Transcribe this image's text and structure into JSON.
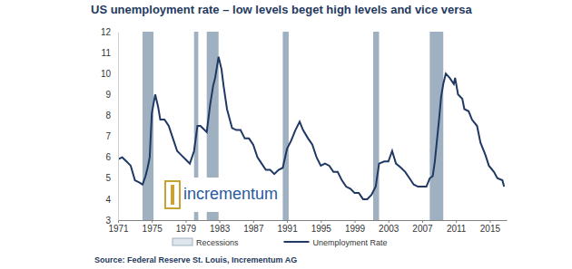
{
  "chart_data": {
    "type": "line",
    "title": "US unemployment rate – low levels beget high levels and vice versa",
    "source": "Source: Federal Reserve St. Louis, Incrementum AG",
    "annotations": [
      "incrementum"
    ],
    "x": [
      1971.0,
      1971.5,
      1972.0,
      1972.5,
      1973.0,
      1973.5,
      1973.9,
      1974.25,
      1974.5,
      1974.75,
      1975.0,
      1975.4,
      1975.75,
      1976.0,
      1976.5,
      1977.0,
      1977.5,
      1978.0,
      1978.5,
      1979.0,
      1979.5,
      1980.0,
      1980.4,
      1980.75,
      1981.0,
      1981.5,
      1981.9,
      1982.25,
      1982.5,
      1982.9,
      1983.25,
      1983.5,
      1983.9,
      1984.5,
      1985.0,
      1985.5,
      1986.0,
      1986.5,
      1987.0,
      1987.5,
      1988.0,
      1988.5,
      1989.0,
      1989.5,
      1990.0,
      1990.5,
      1991.0,
      1991.5,
      1992.0,
      1992.5,
      1992.9,
      1993.5,
      1994.0,
      1994.5,
      1995.0,
      1995.5,
      1996.0,
      1996.5,
      1997.0,
      1997.5,
      1998.0,
      1998.5,
      1999.0,
      1999.5,
      2000.0,
      2000.5,
      2001.0,
      2001.5,
      2001.9,
      2002.5,
      2003.0,
      2003.45,
      2003.9,
      2004.5,
      2005.0,
      2005.5,
      2006.0,
      2006.5,
      2007.0,
      2007.5,
      2007.9,
      2008.25,
      2008.5,
      2008.75,
      2009.0,
      2009.25,
      2009.5,
      2009.8,
      2010.25,
      2010.75,
      2010.9,
      2011.25,
      2011.75,
      2012.0,
      2012.5,
      2012.9,
      2013.5,
      2013.9,
      2014.5,
      2014.9,
      2015.5,
      2015.9,
      2016.5,
      2016.7
    ],
    "series": [
      {
        "name": "Recessions",
        "type": "band",
        "color": "#9fb0c0",
        "starts": [
          1973.9,
          1980.0,
          1981.5,
          1990.5,
          2001.2,
          2007.9
        ],
        "ends": [
          1975.2,
          1980.5,
          1982.9,
          1991.2,
          2001.9,
          2009.5
        ]
      },
      {
        "name": "Unemployment Rate",
        "type": "line",
        "color": "#1f3864",
        "values": [
          5.9,
          6.0,
          5.8,
          5.6,
          4.9,
          4.8,
          4.7,
          5.1,
          5.5,
          6.0,
          8.1,
          9.0,
          8.4,
          7.8,
          7.8,
          7.5,
          6.9,
          6.3,
          6.1,
          5.9,
          5.7,
          6.3,
          7.5,
          7.5,
          7.4,
          7.2,
          8.5,
          9.4,
          9.8,
          10.8,
          10.2,
          9.4,
          8.3,
          7.4,
          7.3,
          7.3,
          6.9,
          6.9,
          6.6,
          6.0,
          5.7,
          5.4,
          5.4,
          5.2,
          5.4,
          5.5,
          6.4,
          6.8,
          7.3,
          7.7,
          7.3,
          6.9,
          6.6,
          6.0,
          5.6,
          5.7,
          5.6,
          5.3,
          5.3,
          4.9,
          4.6,
          4.5,
          4.3,
          4.3,
          4.0,
          4.0,
          4.2,
          4.6,
          5.7,
          5.8,
          5.8,
          6.3,
          5.7,
          5.5,
          5.3,
          5.0,
          4.7,
          4.6,
          4.6,
          4.6,
          5.0,
          5.1,
          5.8,
          6.8,
          7.8,
          8.9,
          9.5,
          10.0,
          9.8,
          9.5,
          9.8,
          9.0,
          8.8,
          8.3,
          8.2,
          7.8,
          7.5,
          6.7,
          6.1,
          5.6,
          5.3,
          5.0,
          4.9,
          4.6
        ]
      }
    ],
    "xlim": [
      1971,
      2017
    ],
    "xticks": [
      1971,
      1975,
      1979,
      1983,
      1987,
      1991,
      1995,
      1999,
      2003,
      2007,
      2011,
      2015
    ],
    "ylim": [
      3,
      12
    ],
    "yticks": [
      3,
      4,
      5,
      6,
      7,
      8,
      9,
      10,
      11,
      12
    ],
    "grid": false,
    "legend": "bottom"
  }
}
